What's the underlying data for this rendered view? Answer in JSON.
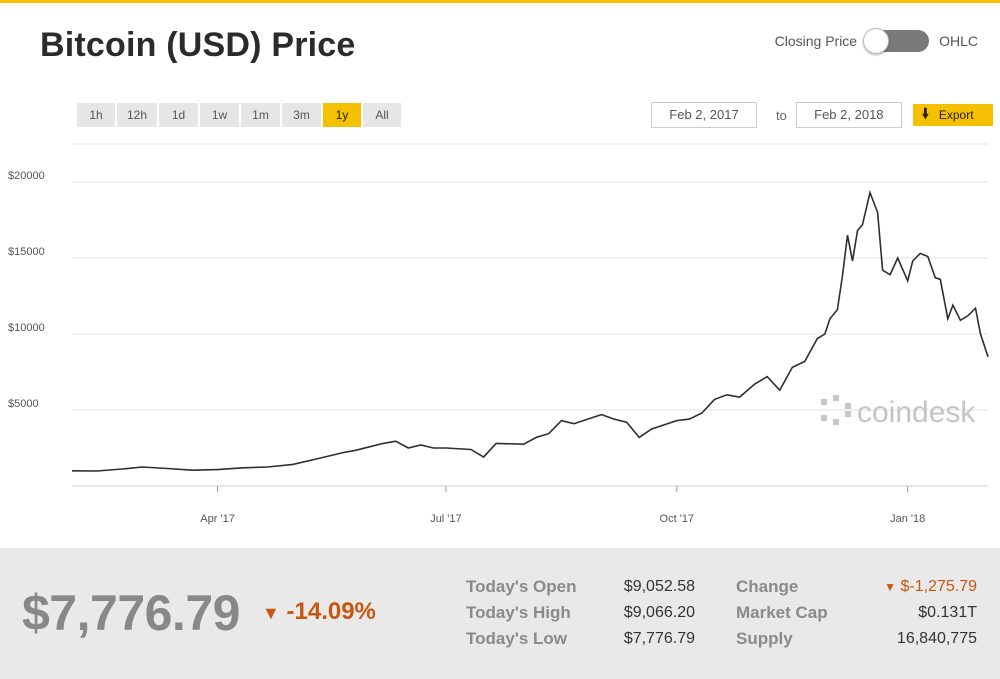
{
  "header": {
    "title": "Bitcoin (USD) Price",
    "toggle_left_label": "Closing Price",
    "toggle_right_label": "OHLC"
  },
  "range_buttons": [
    {
      "label": "1h"
    },
    {
      "label": "12h"
    },
    {
      "label": "1d"
    },
    {
      "label": "1w"
    },
    {
      "label": "1m"
    },
    {
      "label": "3m"
    },
    {
      "label": "1y",
      "active": true
    },
    {
      "label": "All"
    }
  ],
  "date_range": {
    "from": "Feb 2, 2017",
    "to_label": "to",
    "to": "Feb 2, 2018",
    "export_label": "Export"
  },
  "watermark": "coindesk",
  "chart_data": {
    "type": "line",
    "title": "",
    "xlabel": "",
    "ylabel": "",
    "x_range": [
      "2017-02-02",
      "2018-02-02"
    ],
    "ylim": [
      0,
      22500
    ],
    "yticks": [
      5000,
      10000,
      15000,
      20000
    ],
    "ytick_labels": [
      "$5000",
      "$10000",
      "$15000",
      "$20000"
    ],
    "xticks": [
      "2017-04-01",
      "2017-07-01",
      "2017-10-01",
      "2018-01-01"
    ],
    "xtick_labels": [
      "Apr '17",
      "Jul '17",
      "Oct '17",
      "Jan '18"
    ],
    "grid": true,
    "series": [
      {
        "name": "",
        "color": "#2e2e2e",
        "x": [
          "2017-02-02",
          "2017-02-12",
          "2017-02-22",
          "2017-03-02",
          "2017-03-12",
          "2017-03-22",
          "2017-04-01",
          "2017-04-11",
          "2017-04-21",
          "2017-05-01",
          "2017-05-11",
          "2017-05-16",
          "2017-05-21",
          "2017-05-26",
          "2017-06-06",
          "2017-06-11",
          "2017-06-16",
          "2017-06-21",
          "2017-06-26",
          "2017-07-01",
          "2017-07-11",
          "2017-07-16",
          "2017-07-21",
          "2017-08-01",
          "2017-08-06",
          "2017-08-11",
          "2017-08-16",
          "2017-08-21",
          "2017-09-01",
          "2017-09-06",
          "2017-09-11",
          "2017-09-16",
          "2017-09-21",
          "2017-10-01",
          "2017-10-06",
          "2017-10-11",
          "2017-10-16",
          "2017-10-21",
          "2017-10-26",
          "2017-11-01",
          "2017-11-06",
          "2017-11-11",
          "2017-11-16",
          "2017-11-21",
          "2017-11-26",
          "2017-11-29",
          "2017-12-01",
          "2017-12-04",
          "2017-12-06",
          "2017-12-08",
          "2017-12-10",
          "2017-12-12",
          "2017-12-14",
          "2017-12-17",
          "2017-12-20",
          "2017-12-22",
          "2017-12-25",
          "2017-12-28",
          "2018-01-01",
          "2018-01-03",
          "2018-01-06",
          "2018-01-09",
          "2018-01-12",
          "2018-01-14",
          "2018-01-17",
          "2018-01-19",
          "2018-01-22",
          "2018-01-25",
          "2018-01-28",
          "2018-01-30",
          "2018-02-01",
          "2018-02-02"
        ],
        "y": [
          1000,
          990,
          1120,
          1250,
          1150,
          1040,
          1080,
          1200,
          1250,
          1420,
          1800,
          2000,
          2200,
          2350,
          2800,
          2950,
          2500,
          2700,
          2500,
          2500,
          2400,
          1900,
          2800,
          2750,
          3200,
          3450,
          4300,
          4100,
          4700,
          4400,
          4200,
          3200,
          3750,
          4300,
          4400,
          4800,
          5700,
          6000,
          5850,
          6700,
          7200,
          6300,
          7800,
          8200,
          9700,
          10000,
          11000,
          11600,
          13800,
          16500,
          14800,
          16800,
          17200,
          19300,
          18000,
          14200,
          13900,
          15000,
          13500,
          14800,
          15300,
          15100,
          13700,
          13600,
          11000,
          11900,
          10900,
          11200,
          11700,
          10000,
          9000,
          8500
        ]
      }
    ]
  },
  "stats": {
    "price": "$7,776.79",
    "change_pct": "-14.09%",
    "todays_open_label": "Today's Open",
    "todays_open": "$9,052.58",
    "todays_high_label": "Today's High",
    "todays_high": "$9,066.20",
    "todays_low_label": "Today's Low",
    "todays_low": "$7,776.79",
    "change_label": "Change",
    "change_value": "$-1,275.79",
    "market_cap_label": "Market Cap",
    "market_cap": "$0.131T",
    "supply_label": "Supply",
    "supply": "16,840,775"
  },
  "colors": {
    "accent": "#f5c000",
    "negative": "#c9560f",
    "line": "#2e2e2e"
  }
}
